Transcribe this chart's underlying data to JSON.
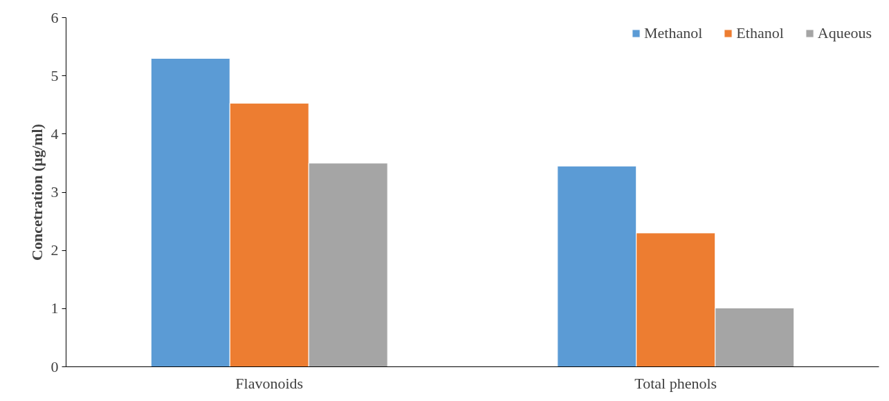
{
  "chart_data": {
    "type": "bar",
    "ylabel": "Concetration (µg/ml)",
    "categories": [
      "Flavonoids",
      "Total phenols"
    ],
    "series": [
      {
        "name": "Methanol",
        "color": "#5b9bd5",
        "values": [
          5.3,
          3.45
        ]
      },
      {
        "name": "Ethanol",
        "color": "#ed7d31",
        "values": [
          4.53,
          2.3
        ]
      },
      {
        "name": "Aqueous",
        "color": "#a5a5a5",
        "values": [
          3.5,
          1.01
        ]
      }
    ],
    "ylim": [
      0,
      6
    ],
    "yticks": [
      0,
      1,
      2,
      3,
      4,
      5,
      6
    ],
    "grid": false,
    "legend": "top right"
  }
}
